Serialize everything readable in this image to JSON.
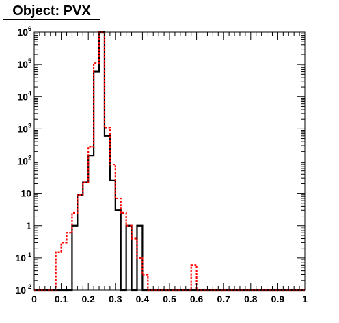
{
  "title": "Object: PVX",
  "chart_data": {
    "type": "histogram",
    "title": "Object: PVX",
    "xlabel": "",
    "ylabel": "",
    "xlim": [
      0,
      1
    ],
    "ylim": [
      0.01,
      1000000
    ],
    "yscale": "log",
    "grid": false,
    "bin_edges": [
      0,
      0.02,
      0.04,
      0.06,
      0.08,
      0.1,
      0.12,
      0.14,
      0.16,
      0.18,
      0.2,
      0.22,
      0.24,
      0.26,
      0.28,
      0.3,
      0.32,
      0.34,
      0.36,
      0.38,
      0.4,
      0.42,
      0.44,
      0.46,
      0.48,
      0.5,
      0.52,
      0.54,
      0.56,
      0.58,
      0.6,
      0.62,
      0.64,
      0.66,
      0.68,
      0.7,
      0.72,
      0.74,
      0.76,
      0.78,
      0.8,
      0.82,
      0.84,
      0.86,
      0.88,
      0.9,
      0.92,
      0.94,
      0.96,
      0.98,
      1.0
    ],
    "series": [
      {
        "color": "#000000",
        "style": "solid",
        "values": [
          0,
          0,
          0,
          0,
          0,
          0,
          0,
          1,
          9,
          22,
          150,
          60000,
          1000000,
          600,
          25,
          3,
          0,
          1,
          0,
          1,
          0,
          0,
          0,
          0,
          0,
          0,
          0,
          0,
          0,
          0,
          0,
          0,
          0,
          0,
          0,
          0,
          0,
          0,
          0,
          0,
          0,
          0,
          0,
          0,
          0,
          0,
          0,
          0,
          0,
          0
        ]
      },
      {
        "color": "#ff0000",
        "style": "dashed",
        "values": [
          0,
          0,
          0,
          0,
          0.15,
          0.3,
          0.6,
          2.5,
          9,
          22,
          280,
          110000,
          1000000,
          1100,
          80,
          7,
          2.5,
          1,
          0.4,
          0.1,
          0.03,
          0,
          0,
          0,
          0,
          0,
          0,
          0,
          0,
          0.06,
          0,
          0,
          0,
          0,
          0,
          0,
          0,
          0,
          0,
          0,
          0,
          0,
          0,
          0,
          0,
          0,
          0,
          0,
          0,
          0
        ]
      }
    ],
    "x_ticks": [
      "0",
      "0.1",
      "0.2",
      "0.3",
      "0.4",
      "0.5",
      "0.6",
      "0.7",
      "0.8",
      "0.9",
      "1"
    ],
    "y_ticks": [
      {
        "value": 1000000,
        "base": "10",
        "exp": "6"
      },
      {
        "value": 100000,
        "base": "10",
        "exp": "5"
      },
      {
        "value": 10000,
        "base": "10",
        "exp": "4"
      },
      {
        "value": 1000,
        "base": "10",
        "exp": "3"
      },
      {
        "value": 100,
        "base": "10",
        "exp": "2"
      },
      {
        "value": 10,
        "base": "10",
        "exp": ""
      },
      {
        "value": 1,
        "base": "1",
        "exp": ""
      },
      {
        "value": 0.1,
        "base": "10",
        "exp": "-1"
      },
      {
        "value": 0.01,
        "base": "10",
        "exp": "-2"
      }
    ]
  }
}
